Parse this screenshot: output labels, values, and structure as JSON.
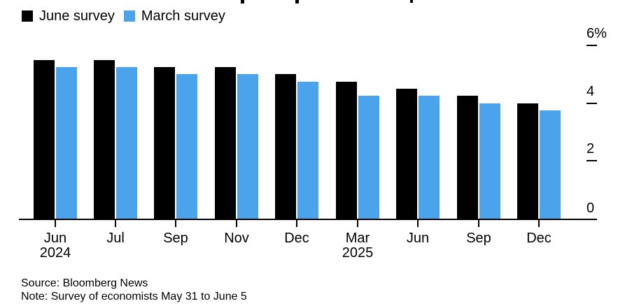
{
  "chart_data": {
    "type": "bar",
    "title_clipped": true,
    "categories": [
      {
        "label": "Jun",
        "sublabel": "2024"
      },
      {
        "label": "Jul"
      },
      {
        "label": "Sep"
      },
      {
        "label": "Nov"
      },
      {
        "label": "Dec"
      },
      {
        "label": "Mar",
        "sublabel": "2025"
      },
      {
        "label": "Jun"
      },
      {
        "label": "Sep"
      },
      {
        "label": "Dec"
      }
    ],
    "series": [
      {
        "name": "June survey",
        "color": "#000000",
        "values": [
          5.5,
          5.5,
          5.25,
          5.25,
          5.0,
          4.75,
          4.5,
          4.25,
          4.0
        ]
      },
      {
        "name": "March survey",
        "color": "#4BA3EC",
        "values": [
          5.25,
          5.25,
          5.0,
          5.0,
          4.75,
          4.25,
          4.25,
          4.0,
          3.75
        ]
      }
    ],
    "ylim": [
      0,
      6
    ],
    "yticks": [
      {
        "value": 6,
        "label": "6%"
      },
      {
        "value": 4,
        "label": "4"
      },
      {
        "value": 2,
        "label": "2"
      },
      {
        "value": 0,
        "label": "0"
      }
    ],
    "grid": false,
    "legend_position": "top-left",
    "unit": "%"
  },
  "footer": {
    "source": "Source: Bloomberg News",
    "note": "Note: Survey of economists May 31 to June 5"
  }
}
